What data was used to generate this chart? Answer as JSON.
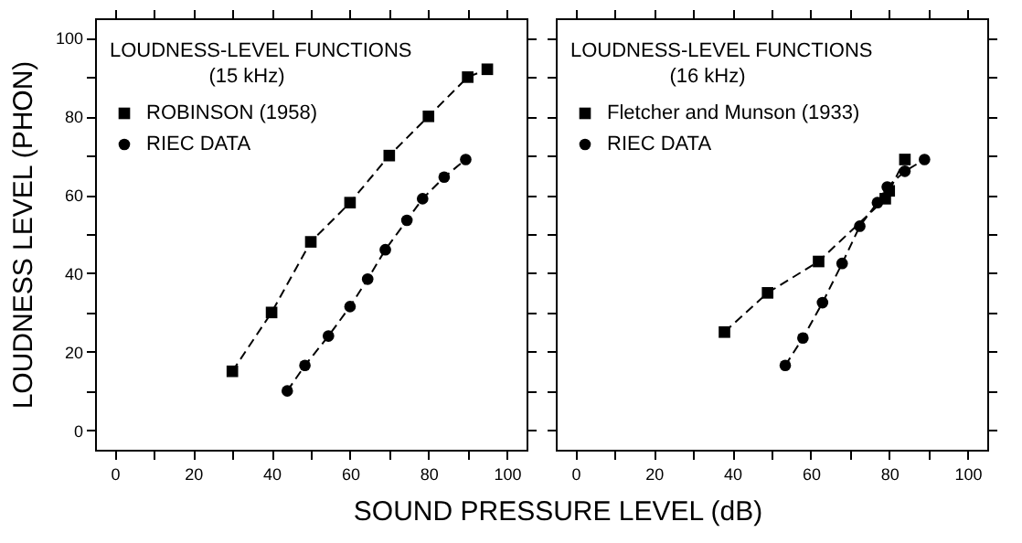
{
  "chart_data": [
    {
      "type": "line",
      "title": "LOUDNESS-LEVEL FUNCTIONS",
      "subtitle": "(15 kHz)",
      "xlabel": "SOUND PRESSURE LEVEL (dB)",
      "ylabel": "LOUDNESS LEVEL (PHON)",
      "xlim": [
        -5,
        105
      ],
      "ylim": [
        -5,
        105
      ],
      "xticks": [
        0,
        {
          "value": 10,
          "label": null
        },
        20,
        {
          "value": 30,
          "label": null
        },
        40,
        {
          "value": 50,
          "label": null
        },
        60,
        {
          "value": 70,
          "label": null
        },
        80,
        {
          "value": 90,
          "label": null
        },
        100
      ],
      "yticks": [
        0,
        {
          "value": 10,
          "label": null
        },
        20,
        {
          "value": 30,
          "label": null
        },
        40,
        {
          "value": 50,
          "label": null
        },
        60,
        {
          "value": 70,
          "label": null
        },
        80,
        {
          "value": 90,
          "label": null
        },
        100
      ],
      "grid": false,
      "legend": "top left",
      "line_style": "dashed",
      "series": [
        {
          "name": "ROBINSON (1958)",
          "color": "#000000",
          "marker": "square",
          "x": [
            30,
            40,
            50,
            60,
            70,
            80,
            90,
            95
          ],
          "values": [
            15,
            30,
            48,
            58,
            70,
            80,
            90,
            92
          ]
        },
        {
          "name": "RIEC DATA",
          "color": "#000000",
          "marker": "circle",
          "x": [
            44,
            48.5,
            54.5,
            60,
            64.5,
            69,
            74.5,
            78.5,
            84,
            89.5
          ],
          "values": [
            10,
            16.5,
            24,
            31.5,
            38.5,
            46,
            53.5,
            59,
            64.5,
            69
          ]
        }
      ]
    },
    {
      "type": "line",
      "title": "LOUDNESS-LEVEL FUNCTIONS",
      "subtitle": "(16 kHz)",
      "xlim": [
        -5,
        105
      ],
      "ylim": [
        -5,
        105
      ],
      "tick_labels": "x",
      "xticks": [
        0,
        {
          "value": 10,
          "label": null
        },
        20,
        {
          "value": 30,
          "label": null
        },
        40,
        {
          "value": 50,
          "label": null
        },
        60,
        {
          "value": 70,
          "label": null
        },
        80,
        {
          "value": 90,
          "label": null
        },
        100
      ],
      "yticks": [
        0,
        {
          "value": 10,
          "label": null
        },
        20,
        {
          "value": 30,
          "label": null
        },
        40,
        {
          "value": 50,
          "label": null
        },
        60,
        {
          "value": 70,
          "label": null
        },
        80,
        {
          "value": 90,
          "label": null
        },
        100
      ],
      "grid": false,
      "legend": "top left",
      "line_style": "dashed",
      "series": [
        {
          "name": "Fletcher and Munson (1933)",
          "color": "#000000",
          "marker": "square",
          "x": [
            38,
            49,
            62,
            79,
            80,
            84
          ],
          "values": [
            25,
            35,
            43,
            59,
            61,
            69
          ]
        },
        {
          "name": "RIEC DATA",
          "color": "#000000",
          "marker": "circle",
          "x": [
            53.5,
            58,
            63,
            68,
            72.5,
            77,
            79.5,
            84,
            89
          ],
          "values": [
            16.5,
            23.5,
            32.5,
            42.5,
            52,
            58,
            62,
            66,
            69
          ]
        }
      ]
    }
  ]
}
